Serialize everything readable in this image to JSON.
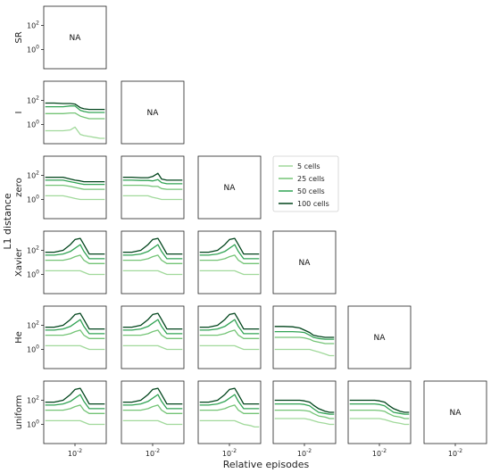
{
  "chart_data": {
    "type": "line",
    "title": "",
    "xlabel": "Relative episodes",
    "ylabel": "L1 distance",
    "xscale": "log",
    "yscale": "log",
    "x_tick": "10^{-2}",
    "y_ticks": [
      "10^{0}",
      "10^{2}"
    ],
    "grid": false,
    "legend_placement": "upper-center (row 3, column 4)",
    "na_label": "NA",
    "row_labels": [
      "SR",
      "I",
      "zero",
      "Xavier",
      "He",
      "uniform"
    ],
    "column_order": [
      "SR",
      "I",
      "zero",
      "Xavier",
      "He",
      "uniform"
    ],
    "x": [
      0.001,
      0.002,
      0.004,
      0.007,
      0.01,
      0.015,
      0.02,
      0.03,
      0.05,
      0.07,
      0.1
    ],
    "series_colors": {
      "5 cells": "#a1d99b",
      "25 cells": "#74c476",
      "50 cells": "#31a354",
      "100 cells": "#00441b"
    },
    "legend": [
      "5 cells",
      "25 cells",
      "50 cells",
      "100 cells"
    ],
    "panels": [
      {
        "row": "I",
        "col": "SR",
        "series": [
          {
            "name": "5 cells",
            "values": [
              0.3,
              0.3,
              0.3,
              0.35,
              0.6,
              0.15,
              0.12,
              0.1,
              0.08,
              0.07,
              0.07
            ]
          },
          {
            "name": "25 cells",
            "values": [
              8,
              8,
              8,
              9,
              9,
              5,
              4,
              3,
              3,
              3,
              3
            ]
          },
          {
            "name": "50 cells",
            "values": [
              30,
              30,
              30,
              35,
              35,
              15,
              12,
              10,
              10,
              10,
              10
            ]
          },
          {
            "name": "100 cells",
            "values": [
              60,
              60,
              55,
              55,
              50,
              25,
              20,
              18,
              18,
              18,
              18
            ]
          }
        ]
      },
      {
        "row": "zero",
        "col": "SR",
        "series": [
          {
            "name": "5 cells",
            "values": [
              2,
              2,
              2,
              1.5,
              1.2,
              1,
              1,
              1,
              1,
              1,
              1
            ]
          },
          {
            "name": "25 cells",
            "values": [
              15,
              15,
              15,
              12,
              10,
              8,
              7,
              7,
              7,
              7,
              7
            ]
          },
          {
            "name": "50 cells",
            "values": [
              40,
              40,
              40,
              30,
              25,
              20,
              18,
              18,
              18,
              18,
              18
            ]
          },
          {
            "name": "100 cells",
            "values": [
              70,
              70,
              70,
              50,
              40,
              35,
              30,
              30,
              30,
              30,
              30
            ]
          }
        ]
      },
      {
        "row": "zero",
        "col": "I",
        "series": [
          {
            "name": "5 cells",
            "values": [
              2,
              2,
              2,
              2,
              1.5,
              1.2,
              1,
              1,
              1,
              1,
              1
            ]
          },
          {
            "name": "25 cells",
            "values": [
              15,
              15,
              15,
              14,
              12,
              12,
              8,
              7,
              7,
              7,
              7
            ]
          },
          {
            "name": "50 cells",
            "values": [
              40,
              40,
              38,
              38,
              35,
              45,
              25,
              20,
              20,
              20,
              20
            ]
          },
          {
            "name": "100 cells",
            "values": [
              70,
              70,
              65,
              65,
              80,
              150,
              50,
              40,
              40,
              40,
              40
            ]
          }
        ]
      },
      {
        "row": "Xavier",
        "col": "SR",
        "series": [
          {
            "name": "5 cells",
            "values": [
              2,
              2,
              2,
              2,
              2,
              2,
              1.5,
              1,
              1,
              1,
              1
            ]
          },
          {
            "name": "25 cells",
            "values": [
              15,
              15,
              15,
              20,
              30,
              40,
              15,
              8,
              8,
              8,
              8
            ]
          },
          {
            "name": "50 cells",
            "values": [
              40,
              40,
              50,
              80,
              150,
              300,
              80,
              20,
              20,
              20,
              20
            ]
          },
          {
            "name": "100 cells",
            "values": [
              70,
              70,
              100,
              300,
              800,
              1000,
              300,
              50,
              50,
              50,
              50
            ]
          }
        ]
      },
      {
        "row": "Xavier",
        "col": "I",
        "series": [
          {
            "name": "5 cells",
            "values": [
              2,
              2,
              2,
              2,
              2,
              2,
              1.5,
              1,
              1,
              1,
              1
            ]
          },
          {
            "name": "25 cells",
            "values": [
              15,
              15,
              15,
              20,
              30,
              40,
              15,
              8,
              8,
              8,
              8
            ]
          },
          {
            "name": "50 cells",
            "values": [
              40,
              40,
              50,
              80,
              150,
              300,
              80,
              20,
              20,
              20,
              20
            ]
          },
          {
            "name": "100 cells",
            "values": [
              70,
              70,
              100,
              300,
              800,
              1000,
              300,
              50,
              50,
              50,
              50
            ]
          }
        ]
      },
      {
        "row": "Xavier",
        "col": "zero",
        "series": [
          {
            "name": "5 cells",
            "values": [
              2,
              2,
              2,
              2,
              2,
              2,
              1.5,
              1,
              1,
              1,
              1
            ]
          },
          {
            "name": "25 cells",
            "values": [
              15,
              15,
              15,
              20,
              30,
              40,
              15,
              8,
              8,
              8,
              8
            ]
          },
          {
            "name": "50 cells",
            "values": [
              40,
              40,
              50,
              80,
              150,
              300,
              80,
              20,
              20,
              20,
              20
            ]
          },
          {
            "name": "100 cells",
            "values": [
              70,
              70,
              100,
              300,
              800,
              1000,
              300,
              50,
              50,
              50,
              50
            ]
          }
        ]
      },
      {
        "row": "He",
        "col": "SR",
        "series": [
          {
            "name": "5 cells",
            "values": [
              2,
              2,
              2,
              2,
              2,
              2,
              1.5,
              1,
              1,
              1,
              1
            ]
          },
          {
            "name": "25 cells",
            "values": [
              15,
              15,
              15,
              20,
              30,
              40,
              15,
              8,
              8,
              8,
              8
            ]
          },
          {
            "name": "50 cells",
            "values": [
              40,
              40,
              50,
              80,
              150,
              300,
              80,
              20,
              20,
              20,
              20
            ]
          },
          {
            "name": "100 cells",
            "values": [
              70,
              70,
              100,
              300,
              800,
              1000,
              300,
              50,
              50,
              50,
              50
            ]
          }
        ]
      },
      {
        "row": "He",
        "col": "I",
        "series": [
          {
            "name": "5 cells",
            "values": [
              2,
              2,
              2,
              2,
              2,
              2,
              1.5,
              1,
              1,
              1,
              1
            ]
          },
          {
            "name": "25 cells",
            "values": [
              15,
              15,
              15,
              20,
              30,
              40,
              15,
              8,
              8,
              8,
              8
            ]
          },
          {
            "name": "50 cells",
            "values": [
              40,
              40,
              50,
              80,
              150,
              300,
              80,
              20,
              20,
              20,
              20
            ]
          },
          {
            "name": "100 cells",
            "values": [
              70,
              70,
              100,
              300,
              800,
              1000,
              300,
              50,
              50,
              50,
              50
            ]
          }
        ]
      },
      {
        "row": "He",
        "col": "zero",
        "series": [
          {
            "name": "5 cells",
            "values": [
              2,
              2,
              2,
              2,
              2,
              2,
              1.5,
              1,
              1,
              1,
              1
            ]
          },
          {
            "name": "25 cells",
            "values": [
              15,
              15,
              15,
              20,
              30,
              40,
              15,
              8,
              8,
              8,
              8
            ]
          },
          {
            "name": "50 cells",
            "values": [
              40,
              40,
              50,
              80,
              150,
              300,
              80,
              20,
              20,
              20,
              20
            ]
          },
          {
            "name": "100 cells",
            "values": [
              70,
              70,
              100,
              300,
              800,
              1000,
              300,
              50,
              50,
              50,
              50
            ]
          }
        ]
      },
      {
        "row": "He",
        "col": "Xavier",
        "series": [
          {
            "name": "5 cells",
            "values": [
              1,
              1,
              1,
              1,
              1,
              1,
              0.8,
              0.6,
              0.4,
              0.3,
              0.3
            ]
          },
          {
            "name": "25 cells",
            "values": [
              10,
              10,
              10,
              10,
              9,
              7,
              5,
              4,
              3,
              3,
              3
            ]
          },
          {
            "name": "50 cells",
            "values": [
              30,
              30,
              30,
              28,
              25,
              15,
              10,
              8,
              7,
              7,
              7
            ]
          },
          {
            "name": "100 cells",
            "values": [
              80,
              80,
              75,
              60,
              40,
              25,
              15,
              12,
              10,
              10,
              10
            ]
          }
        ]
      },
      {
        "row": "uniform",
        "col": "SR",
        "series": [
          {
            "name": "5 cells",
            "values": [
              2,
              2,
              2,
              2,
              2,
              2,
              1.5,
              1,
              1,
              1,
              1
            ]
          },
          {
            "name": "25 cells",
            "values": [
              15,
              15,
              15,
              20,
              30,
              40,
              15,
              8,
              8,
              8,
              8
            ]
          },
          {
            "name": "50 cells",
            "values": [
              40,
              40,
              50,
              80,
              150,
              300,
              80,
              20,
              20,
              20,
              20
            ]
          },
          {
            "name": "100 cells",
            "values": [
              70,
              70,
              100,
              300,
              800,
              1000,
              300,
              50,
              50,
              50,
              50
            ]
          }
        ]
      },
      {
        "row": "uniform",
        "col": "I",
        "series": [
          {
            "name": "5 cells",
            "values": [
              2,
              2,
              2,
              2,
              2,
              2,
              1.5,
              1,
              1,
              1,
              1
            ]
          },
          {
            "name": "25 cells",
            "values": [
              15,
              15,
              15,
              20,
              30,
              40,
              15,
              8,
              8,
              8,
              8
            ]
          },
          {
            "name": "50 cells",
            "values": [
              40,
              40,
              50,
              80,
              150,
              300,
              80,
              20,
              20,
              20,
              20
            ]
          },
          {
            "name": "100 cells",
            "values": [
              70,
              70,
              100,
              300,
              800,
              1000,
              300,
              50,
              50,
              50,
              50
            ]
          }
        ]
      },
      {
        "row": "uniform",
        "col": "zero",
        "series": [
          {
            "name": "5 cells",
            "values": [
              2,
              2,
              2,
              2,
              2,
              2,
              1.5,
              1,
              0.8,
              0.6,
              0.6
            ]
          },
          {
            "name": "25 cells",
            "values": [
              15,
              15,
              15,
              20,
              30,
              40,
              15,
              8,
              8,
              8,
              8
            ]
          },
          {
            "name": "50 cells",
            "values": [
              40,
              40,
              50,
              80,
              150,
              300,
              80,
              20,
              20,
              20,
              20
            ]
          },
          {
            "name": "100 cells",
            "values": [
              70,
              70,
              100,
              300,
              800,
              1000,
              300,
              50,
              50,
              50,
              50
            ]
          }
        ]
      },
      {
        "row": "uniform",
        "col": "Xavier",
        "series": [
          {
            "name": "5 cells",
            "values": [
              3,
              3,
              3,
              3,
              3,
              2.5,
              2,
              1.5,
              1.2,
              1,
              1
            ]
          },
          {
            "name": "25 cells",
            "values": [
              15,
              15,
              15,
              15,
              14,
              12,
              8,
              5,
              4,
              3,
              3
            ]
          },
          {
            "name": "50 cells",
            "values": [
              50,
              50,
              50,
              50,
              45,
              35,
              20,
              10,
              8,
              7,
              7
            ]
          },
          {
            "name": "100 cells",
            "values": [
              100,
              100,
              100,
              100,
              90,
              70,
              40,
              20,
              12,
              10,
              10
            ]
          }
        ]
      },
      {
        "row": "uniform",
        "col": "He",
        "series": [
          {
            "name": "5 cells",
            "values": [
              3,
              3,
              3,
              3,
              3,
              2.5,
              2,
              1.5,
              1.2,
              1,
              1
            ]
          },
          {
            "name": "25 cells",
            "values": [
              15,
              15,
              15,
              15,
              14,
              12,
              8,
              5,
              4,
              3,
              3
            ]
          },
          {
            "name": "50 cells",
            "values": [
              50,
              50,
              50,
              50,
              45,
              35,
              20,
              10,
              8,
              7,
              7
            ]
          },
          {
            "name": "100 cells",
            "values": [
              100,
              100,
              100,
              100,
              90,
              70,
              40,
              20,
              12,
              10,
              10
            ]
          }
        ]
      }
    ]
  }
}
